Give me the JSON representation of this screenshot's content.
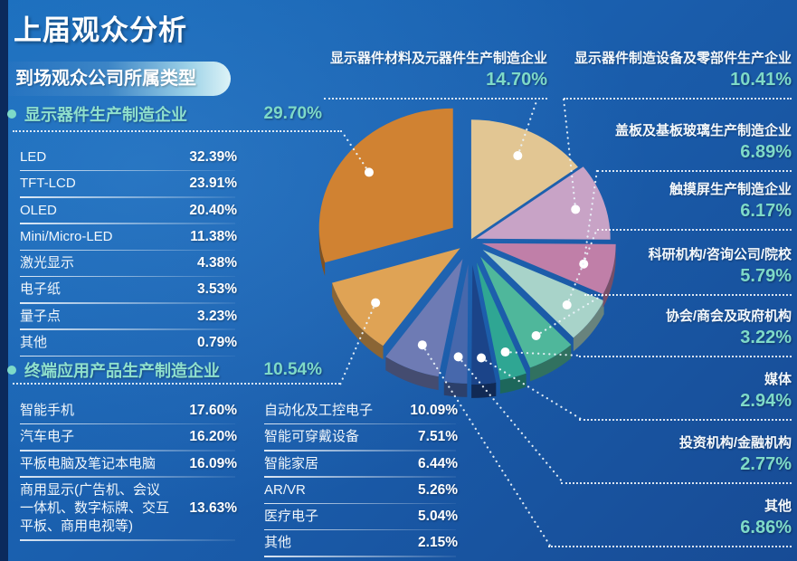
{
  "title": "上届观众分析",
  "subtitle": "到场观众公司所属类型",
  "colors": {
    "accent_teal": "#7EDAC8",
    "header_mint": "#8FE0CD",
    "background_top": "#1569B9",
    "background_bottom": "#174B95",
    "left_bar": "#0B2A5C"
  },
  "sections": {
    "s1": {
      "label": "显示器件生产制造企业",
      "value": "29.70%",
      "rows": [
        {
          "label": "LED",
          "value": "32.39%"
        },
        {
          "label": "TFT-LCD",
          "value": "23.91%"
        },
        {
          "label": "OLED",
          "value": "20.40%"
        },
        {
          "label": "Mini/Micro-LED",
          "value": "11.38%"
        },
        {
          "label": "激光显示",
          "value": "4.38%"
        },
        {
          "label": "电子纸",
          "value": "3.53%"
        },
        {
          "label": "量子点",
          "value": "3.23%"
        },
        {
          "label": "其他",
          "value": "0.79%"
        }
      ]
    },
    "s2": {
      "label": "终端应用产品生产制造企业",
      "value": "10.54%",
      "rows_left": [
        {
          "label": "智能手机",
          "value": "17.60%"
        },
        {
          "label": "汽车电子",
          "value": "16.20%"
        },
        {
          "label": "平板电脑及笔记本电脑",
          "value": "16.09%"
        },
        {
          "label": "商用显示(广告机、会议一体机、数字标牌、交互平板、商用电视等)",
          "value": "13.63%"
        }
      ],
      "rows_right": [
        {
          "label": "自动化及工控电子",
          "value": "10.09%"
        },
        {
          "label": "智能可穿戴设备",
          "value": "7.51%"
        },
        {
          "label": "智能家居",
          "value": "6.44%"
        },
        {
          "label": "AR/VR",
          "value": "5.26%"
        },
        {
          "label": "医疗电子",
          "value": "5.04%"
        },
        {
          "label": "其他",
          "value": "2.15%"
        }
      ]
    }
  },
  "callouts": [
    {
      "label": "显示器件材料及元器件生产制造企业",
      "value": "14.70%"
    },
    {
      "label": "显示器件制造设备及零部件生产企业",
      "value": "10.41%"
    },
    {
      "label": "盖板及基板玻璃生产制造企业",
      "value": "6.89%"
    },
    {
      "label": "触摸屏生产制造企业",
      "value": "6.17%"
    },
    {
      "label": "科研机构/咨询公司/院校",
      "value": "5.79%"
    },
    {
      "label": "协会/商会及政府机构",
      "value": "3.22%"
    },
    {
      "label": "媒体",
      "value": "2.94%"
    },
    {
      "label": "投资机构/金融机构",
      "value": "2.77%"
    },
    {
      "label": "其他",
      "value": "6.86%"
    }
  ],
  "chart_data": {
    "type": "pie",
    "title": "到场观众公司所属类型",
    "unit": "percent",
    "start_angle_deg": 0,
    "direction": "clockwise",
    "slices": [
      {
        "label": "显示器件材料及元器件生产制造企业",
        "value": 14.7,
        "color": "#E2C693"
      },
      {
        "label": "显示器件制造设备及零部件生产企业",
        "value": 10.41,
        "color": "#C8A3C6"
      },
      {
        "label": "盖板及基板玻璃生产制造企业",
        "value": 6.89,
        "color": "#C07FA8"
      },
      {
        "label": "触摸屏生产制造企业",
        "value": 6.17,
        "color": "#A8D3C9"
      },
      {
        "label": "科研机构/咨询公司/院校",
        "value": 5.79,
        "color": "#4FB79B"
      },
      {
        "label": "协会/商会及政府机构",
        "value": 3.22,
        "color": "#2FA693"
      },
      {
        "label": "媒体",
        "value": 2.94,
        "color": "#1B4489"
      },
      {
        "label": "投资机构/金融机构",
        "value": 2.77,
        "color": "#4768AC"
      },
      {
        "label": "其他",
        "value": 6.86,
        "color": "#6E7BB4"
      },
      {
        "label": "终端应用产品生产制造企业",
        "value": 10.54,
        "color": "#DFA355"
      },
      {
        "label": "显示器件生产制造企业",
        "value": 29.7,
        "color": "#D08232"
      }
    ]
  }
}
